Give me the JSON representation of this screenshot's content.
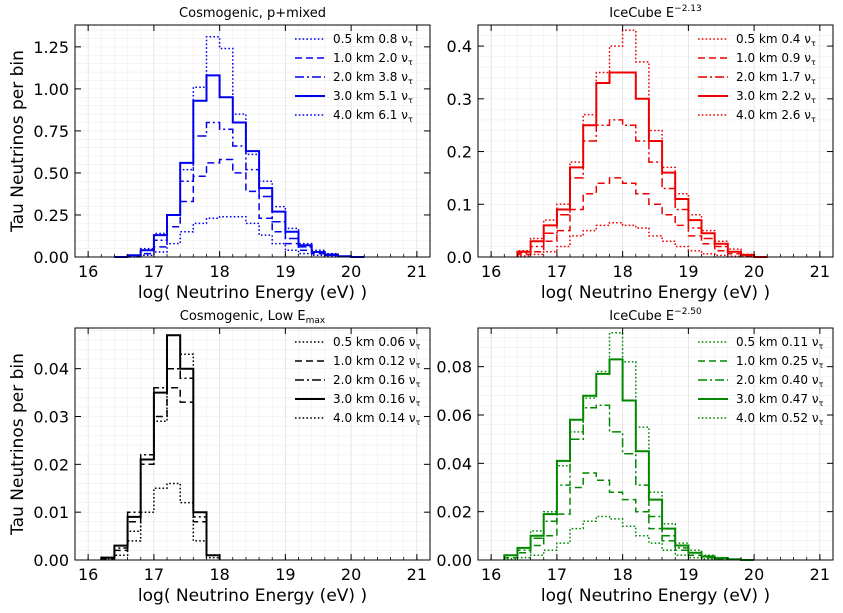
{
  "chart_data": [
    {
      "type": "histogram",
      "title": "Cosmogenic, p+mixed",
      "title_sup": "",
      "color": "#0000ee",
      "xlabel": "log( Neutrino Energy (eV) )",
      "ylabel": "Tau Neutrinos per bin",
      "xlim": [
        15.8,
        21.2
      ],
      "ylim": [
        0,
        1.38
      ],
      "xticks": [
        "16",
        "17",
        "18",
        "19",
        "20",
        "21"
      ],
      "yticks": [
        "0.00",
        "0.25",
        "0.50",
        "0.75",
        "1.00",
        "1.25"
      ],
      "legend_position": "top-right",
      "bin_edges": [
        16.4,
        16.6,
        16.8,
        17.0,
        17.2,
        17.4,
        17.6,
        17.8,
        18.0,
        18.2,
        18.4,
        18.6,
        18.8,
        19.0,
        19.2,
        19.4,
        19.6,
        19.8,
        20.0,
        20.2
      ],
      "series": [
        {
          "label": "0.5 km 0.8 ν",
          "style": "dotted",
          "values": [
            0.0,
            0.0,
            0.01,
            0.03,
            0.08,
            0.15,
            0.2,
            0.23,
            0.24,
            0.24,
            0.2,
            0.13,
            0.08,
            0.04,
            0.02,
            0.01,
            0.005,
            0.002,
            0.0
          ]
        },
        {
          "label": "1.0 km 2.0 ν",
          "style": "dashed",
          "values": [
            0.0,
            0.005,
            0.02,
            0.06,
            0.18,
            0.33,
            0.48,
            0.56,
            0.58,
            0.5,
            0.39,
            0.23,
            0.15,
            0.08,
            0.04,
            0.02,
            0.01,
            0.005,
            0.0
          ]
        },
        {
          "label": "2.0 km 3.8 ν",
          "style": "dashdot",
          "values": [
            0.0,
            0.01,
            0.04,
            0.1,
            0.25,
            0.45,
            0.72,
            0.8,
            0.76,
            0.66,
            0.52,
            0.36,
            0.21,
            0.11,
            0.06,
            0.03,
            0.01,
            0.005,
            0.0
          ]
        },
        {
          "label": "3.0 km 5.1 ν",
          "style": "solid",
          "values": [
            0.0,
            0.01,
            0.04,
            0.13,
            0.25,
            0.56,
            0.93,
            1.08,
            0.95,
            0.8,
            0.63,
            0.41,
            0.27,
            0.15,
            0.07,
            0.03,
            0.015,
            0.005,
            0.0
          ]
        },
        {
          "label": "4.0 km 6.1 ν",
          "style": "dotted",
          "values": [
            0.0,
            0.01,
            0.05,
            0.14,
            0.25,
            0.52,
            1.01,
            1.31,
            1.24,
            0.85,
            0.61,
            0.45,
            0.3,
            0.17,
            0.08,
            0.04,
            0.02,
            0.005,
            0.0
          ]
        }
      ]
    },
    {
      "type": "histogram",
      "title": "IceCube E",
      "title_sup": "−2.13",
      "color": "#ee0000",
      "xlabel": "log( Neutrino Energy (eV) )",
      "ylabel": "",
      "xlim": [
        15.8,
        21.2
      ],
      "ylim": [
        0,
        0.44
      ],
      "xticks": [
        "16",
        "17",
        "18",
        "19",
        "20",
        "21"
      ],
      "yticks": [
        "0.0",
        "0.1",
        "0.2",
        "0.3",
        "0.4"
      ],
      "legend_position": "top-right",
      "bin_edges": [
        16.4,
        16.6,
        16.8,
        17.0,
        17.2,
        17.4,
        17.6,
        17.8,
        18.0,
        18.2,
        18.4,
        18.6,
        18.8,
        19.0,
        19.2,
        19.4,
        19.6,
        19.8,
        20.0,
        20.2
      ],
      "series": [
        {
          "label": "0.5 km 0.4 ν",
          "style": "dotted",
          "values": [
            0.002,
            0.005,
            0.01,
            0.02,
            0.04,
            0.05,
            0.06,
            0.065,
            0.06,
            0.055,
            0.04,
            0.03,
            0.02,
            0.012,
            0.006,
            0.003,
            0.0015,
            0.0005,
            0.0
          ]
        },
        {
          "label": "1.0 km 0.9 ν",
          "style": "dashed",
          "values": [
            0.005,
            0.01,
            0.03,
            0.05,
            0.09,
            0.12,
            0.14,
            0.15,
            0.14,
            0.12,
            0.1,
            0.08,
            0.06,
            0.04,
            0.025,
            0.012,
            0.006,
            0.002,
            0.0
          ]
        },
        {
          "label": "2.0 km 1.7 ν",
          "style": "dashdot",
          "values": [
            0.008,
            0.02,
            0.045,
            0.08,
            0.15,
            0.22,
            0.25,
            0.26,
            0.25,
            0.22,
            0.18,
            0.13,
            0.09,
            0.055,
            0.035,
            0.02,
            0.01,
            0.004,
            0.0
          ]
        },
        {
          "label": "3.0 km 2.2 ν",
          "style": "solid",
          "values": [
            0.01,
            0.03,
            0.06,
            0.09,
            0.17,
            0.25,
            0.33,
            0.35,
            0.35,
            0.3,
            0.22,
            0.16,
            0.11,
            0.07,
            0.045,
            0.025,
            0.01,
            0.004,
            0.0
          ]
        },
        {
          "label": "4.0 km 2.6 ν",
          "style": "dotted",
          "values": [
            0.012,
            0.035,
            0.07,
            0.1,
            0.18,
            0.27,
            0.35,
            0.4,
            0.43,
            0.37,
            0.24,
            0.17,
            0.12,
            0.08,
            0.05,
            0.03,
            0.015,
            0.005,
            0.0
          ]
        }
      ]
    },
    {
      "type": "histogram",
      "title": "Cosmogenic, Low E",
      "title_sub": "max",
      "color": "#000000",
      "xlabel": "log( Neutrino Energy (eV) )",
      "ylabel": "Tau Neutrinos per bin",
      "xlim": [
        15.8,
        21.2
      ],
      "ylim": [
        0,
        0.0485
      ],
      "xticks": [
        "16",
        "17",
        "18",
        "19",
        "20",
        "21"
      ],
      "yticks": [
        "0.00",
        "0.01",
        "0.02",
        "0.03",
        "0.04"
      ],
      "legend_position": "top-right",
      "bin_edges": [
        16.2,
        16.4,
        16.6,
        16.8,
        17.0,
        17.2,
        17.4,
        17.6,
        17.8,
        18.0
      ],
      "series": [
        {
          "label": "0.5 km 0.06 ν",
          "style": "dotted",
          "values": [
            0.0002,
            0.001,
            0.004,
            0.01,
            0.015,
            0.016,
            0.012,
            0.004,
            0.0005
          ]
        },
        {
          "label": "1.0 km 0.12 ν",
          "style": "dashed",
          "values": [
            0.0003,
            0.002,
            0.008,
            0.02,
            0.03,
            0.036,
            0.033,
            0.008,
            0.001
          ]
        },
        {
          "label": "2.0 km 0.16 ν",
          "style": "dashdot",
          "values": [
            0.0005,
            0.0025,
            0.01,
            0.022,
            0.036,
            0.04,
            0.038,
            0.009,
            0.001
          ]
        },
        {
          "label": "3.0 km 0.16 ν",
          "style": "solid",
          "values": [
            0.0005,
            0.003,
            0.009,
            0.021,
            0.035,
            0.047,
            0.04,
            0.01,
            0.001
          ]
        },
        {
          "label": "4.0 km 0.14 ν",
          "style": "dotted",
          "values": [
            0.0005,
            0.003,
            0.006,
            0.021,
            0.029,
            0.047,
            0.043,
            0.01,
            0.001
          ]
        }
      ]
    },
    {
      "type": "histogram",
      "title": "IceCube E",
      "title_sup": "−2.50",
      "color": "#008800",
      "xlabel": "log( Neutrino Energy (eV) )",
      "ylabel": "",
      "xlim": [
        15.8,
        21.2
      ],
      "ylim": [
        0,
        0.096
      ],
      "xticks": [
        "16",
        "17",
        "18",
        "19",
        "20",
        "21"
      ],
      "yticks": [
        "0.00",
        "0.02",
        "0.04",
        "0.06",
        "0.08"
      ],
      "legend_position": "top-right",
      "bin_edges": [
        16.2,
        16.4,
        16.6,
        16.8,
        17.0,
        17.2,
        17.4,
        17.6,
        17.8,
        18.0,
        18.2,
        18.4,
        18.6,
        18.8,
        19.0,
        19.2,
        19.4,
        19.6,
        19.8,
        20.0
      ],
      "series": [
        {
          "label": "0.5 km 0.11 ν",
          "style": "dotted",
          "values": [
            0.0005,
            0.001,
            0.002,
            0.004,
            0.007,
            0.013,
            0.016,
            0.018,
            0.017,
            0.014,
            0.01,
            0.007,
            0.004,
            0.002,
            0.001,
            0.0005,
            0.0003,
            0.0001,
            0.0
          ]
        },
        {
          "label": "1.0 km 0.25 ν",
          "style": "dashed",
          "values": [
            0.001,
            0.003,
            0.006,
            0.01,
            0.019,
            0.03,
            0.036,
            0.033,
            0.028,
            0.025,
            0.02,
            0.013,
            0.008,
            0.004,
            0.002,
            0.001,
            0.0005,
            0.0002,
            0.0
          ]
        },
        {
          "label": "2.0 km 0.40 ν",
          "style": "dashdot",
          "values": [
            0.002,
            0.004,
            0.009,
            0.016,
            0.031,
            0.05,
            0.063,
            0.064,
            0.053,
            0.044,
            0.031,
            0.018,
            0.01,
            0.005,
            0.003,
            0.0015,
            0.0008,
            0.0003,
            0.0
          ]
        },
        {
          "label": "3.0 km 0.47 ν",
          "style": "solid",
          "values": [
            0.002,
            0.005,
            0.01,
            0.019,
            0.041,
            0.058,
            0.068,
            0.077,
            0.083,
            0.066,
            0.045,
            0.025,
            0.013,
            0.006,
            0.003,
            0.0015,
            0.0008,
            0.0003,
            0.0
          ]
        },
        {
          "label": "4.0 km 0.52 ν",
          "style": "dotted",
          "values": [
            0.002,
            0.005,
            0.012,
            0.02,
            0.039,
            0.053,
            0.067,
            0.078,
            0.094,
            0.082,
            0.055,
            0.028,
            0.015,
            0.007,
            0.004,
            0.002,
            0.001,
            0.0003,
            0.0
          ]
        }
      ]
    }
  ]
}
